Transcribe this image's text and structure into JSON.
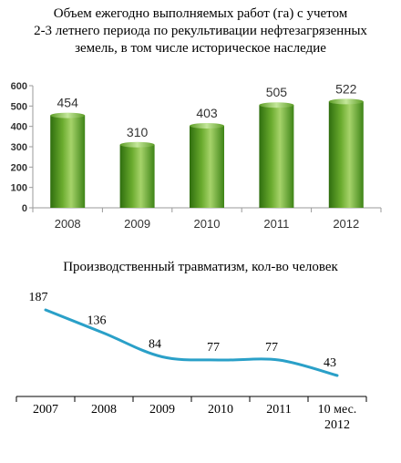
{
  "chart_data": [
    {
      "type": "bar",
      "title_lines": [
        "Объем ежегодно выполняемых работ (га) с учетом",
        "2-3 летнего периода по рекультивации нефтезагрязенных",
        "земель, в том числе историческое наследие"
      ],
      "categories": [
        "2008",
        "2009",
        "2010",
        "2011",
        "2012"
      ],
      "values": [
        454,
        310,
        403,
        505,
        522
      ],
      "value_labels": [
        "454",
        "310",
        "403",
        "505",
        "522"
      ],
      "y_ticks": [
        "0",
        "100",
        "200",
        "300",
        "400",
        "500",
        "600"
      ],
      "ylim": [
        0,
        600
      ],
      "grid": false,
      "colors": {
        "bar_light": "#a6d36a",
        "bar_mid": "#6aab2e",
        "bar_dark": "#2f6e0f"
      }
    },
    {
      "type": "line",
      "title": "Производственный травматизм, кол-во человек",
      "categories": [
        "2007",
        "2008",
        "2009",
        "2010",
        "2011",
        "10 мес. 2012"
      ],
      "category_lines": [
        [
          "2007"
        ],
        [
          "2008"
        ],
        [
          "2009"
        ],
        [
          "2010"
        ],
        [
          "2011"
        ],
        [
          "10 мес.",
          "2012"
        ]
      ],
      "values": [
        187,
        136,
        84,
        77,
        77,
        43
      ],
      "value_labels": [
        "187",
        "136",
        "84",
        "77",
        "77",
        "43"
      ],
      "grid": false,
      "colors": {
        "line": "#2aa0c8"
      }
    }
  ]
}
